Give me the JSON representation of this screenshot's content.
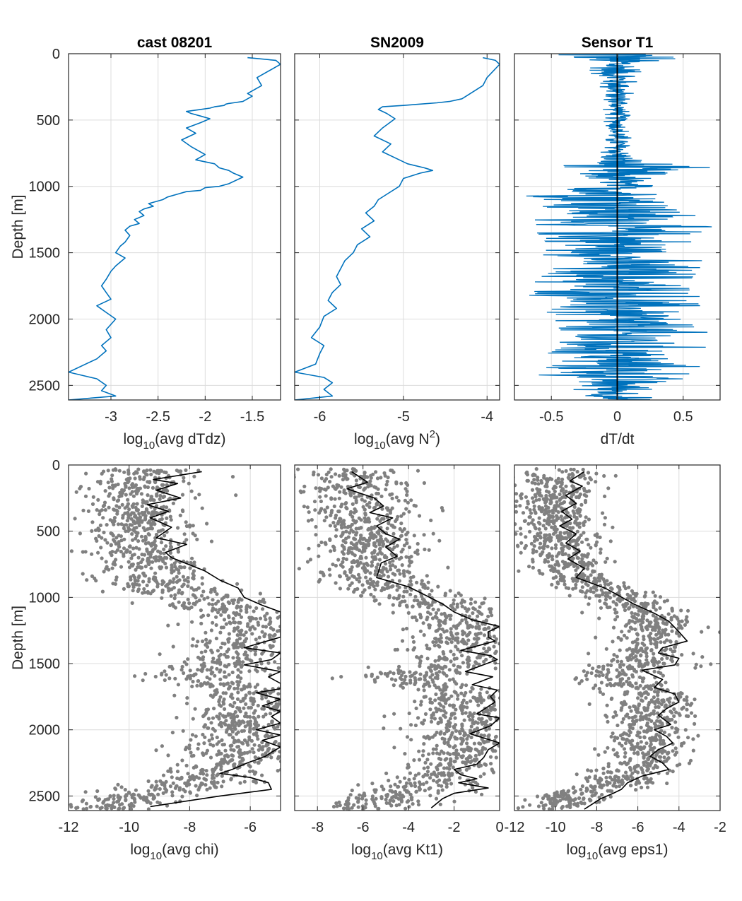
{
  "figure": {
    "colors": {
      "line_blue": "#0072BD",
      "scatter_gray": "#808080",
      "mean_black": "#000000",
      "grid": "#dcdcdc",
      "axes": "#262626"
    }
  },
  "chart_data": [
    {
      "id": "p1",
      "type": "line",
      "title": "cast 08201",
      "xlabel": {
        "pre": "log",
        "sub": "10",
        "post": "(avg dTdz)"
      },
      "ylabel": "Depth [m]",
      "xlim": [
        -3.45,
        -1.2
      ],
      "ylim": [
        0,
        2610
      ],
      "y_reversed": true,
      "grid": true,
      "xticks": [
        -3,
        -2.5,
        -2,
        -1.5
      ],
      "xtick_labels": [
        "-3",
        "-2.5",
        "-2",
        "-1.5"
      ],
      "yticks": [
        0,
        500,
        1000,
        1500,
        2000,
        2500
      ],
      "ytick_labels": [
        "0",
        "500",
        "1000",
        "1500",
        "2000",
        "2500"
      ],
      "series": [
        {
          "color": "#0072BD",
          "x": [
            -1.55,
            -1.25,
            -1.2,
            -1.45,
            -1.4,
            -1.55,
            -1.5,
            -1.6,
            -1.7,
            -1.75,
            -1.78,
            -1.8,
            -1.85,
            -1.9,
            -1.95,
            -2.05,
            -2.2,
            -2.15,
            -2.05,
            -1.95,
            -2.05,
            -2.2,
            -2.1,
            -2.25,
            -2.15,
            -2.0,
            -2.1,
            -1.9,
            -1.85,
            -1.75,
            -1.7,
            -1.6,
            -1.75,
            -1.85,
            -2.0,
            -2.05,
            -2.2,
            -2.3,
            -2.4,
            -2.45,
            -2.5,
            -2.6,
            -2.55,
            -2.65,
            -2.7,
            -2.65,
            -2.75,
            -2.7,
            -2.8,
            -2.85,
            -2.8,
            -2.85,
            -2.9,
            -2.95,
            -2.85,
            -2.95,
            -3.0,
            -3.05,
            -3.1,
            -3.05,
            -3.0,
            -3.15,
            -3.05,
            -2.95,
            -3.05,
            -3.0,
            -3.1,
            -3.05,
            -3.15,
            -3.45,
            -3.15,
            -3.05,
            -3.1,
            -2.95,
            -3.45
          ],
          "y": [
            30,
            50,
            80,
            180,
            240,
            300,
            320,
            360,
            370,
            375,
            380,
            390,
            395,
            400,
            410,
            420,
            435,
            450,
            470,
            490,
            520,
            560,
            600,
            650,
            700,
            760,
            800,
            830,
            860,
            880,
            900,
            930,
            980,
            1000,
            1010,
            1030,
            1040,
            1060,
            1080,
            1100,
            1110,
            1130,
            1150,
            1170,
            1190,
            1220,
            1250,
            1280,
            1300,
            1330,
            1370,
            1420,
            1450,
            1500,
            1540,
            1600,
            1640,
            1700,
            1750,
            1800,
            1850,
            1900,
            1950,
            2000,
            2080,
            2140,
            2200,
            2240,
            2300,
            2400,
            2450,
            2500,
            2540,
            2580,
            2610
          ]
        }
      ]
    },
    {
      "id": "p2",
      "type": "line",
      "title": "SN2009",
      "xlabel": {
        "pre": "log",
        "sub": "10",
        "post": "(avg N",
        "sup": "2",
        "post2": ")"
      },
      "xlim": [
        -6.3,
        -3.85
      ],
      "ylim": [
        0,
        2610
      ],
      "y_reversed": true,
      "grid": true,
      "xticks": [
        -6,
        -5,
        -4
      ],
      "xtick_labels": [
        "-6",
        "-5",
        "-4"
      ],
      "yticks": [
        0,
        500,
        1000,
        1500,
        2000,
        2500
      ],
      "series": [
        {
          "color": "#0072BD",
          "x": [
            -4.05,
            -3.9,
            -3.85,
            -4.0,
            -4.05,
            -4.2,
            -4.3,
            -4.45,
            -4.6,
            -4.8,
            -5.0,
            -5.25,
            -5.3,
            -5.2,
            -5.1,
            -5.25,
            -5.35,
            -5.15,
            -5.25,
            -5.05,
            -4.95,
            -4.75,
            -4.7,
            -4.65,
            -4.8,
            -5.0,
            -5.05,
            -5.2,
            -5.3,
            -5.35,
            -5.45,
            -5.35,
            -5.5,
            -5.4,
            -5.55,
            -5.6,
            -5.7,
            -5.75,
            -5.8,
            -5.75,
            -5.85,
            -5.9,
            -5.8,
            -5.95,
            -6.0,
            -6.1,
            -5.95,
            -6.0,
            -6.05,
            -6.3,
            -5.95,
            -5.85,
            -5.95,
            -5.85,
            -6.3
          ],
          "y": [
            30,
            50,
            80,
            180,
            240,
            300,
            340,
            360,
            370,
            380,
            390,
            400,
            420,
            450,
            490,
            560,
            620,
            680,
            740,
            800,
            830,
            860,
            870,
            880,
            900,
            940,
            1000,
            1060,
            1100,
            1150,
            1200,
            1260,
            1320,
            1380,
            1440,
            1500,
            1560,
            1620,
            1680,
            1740,
            1800,
            1860,
            1920,
            1980,
            2060,
            2140,
            2200,
            2260,
            2340,
            2400,
            2440,
            2480,
            2530,
            2580,
            2610
          ]
        }
      ]
    },
    {
      "id": "p3",
      "type": "line",
      "title": "Sensor T1",
      "xlabel": {
        "pre": "dT/dt"
      },
      "xlim": [
        -0.78,
        0.78
      ],
      "ylim": [
        0,
        2610
      ],
      "y_reversed": true,
      "grid": true,
      "xticks": [
        -0.5,
        0,
        0.5
      ],
      "xtick_labels": [
        "-0.5",
        "0",
        "0.5"
      ],
      "yticks": [
        0,
        500,
        1000,
        1500,
        2000,
        2500
      ],
      "signal_envelope": {
        "depth": [
          0,
          50,
          100,
          200,
          300,
          400,
          500,
          600,
          700,
          800,
          850,
          900,
          950,
          1000,
          1050,
          1100,
          1200,
          1300,
          1400,
          1500,
          1600,
          1700,
          1800,
          1900,
          2000,
          2100,
          2200,
          2300,
          2400,
          2500,
          2610
        ],
        "amplitude": [
          0.78,
          0.5,
          0.3,
          0.2,
          0.15,
          0.12,
          0.12,
          0.12,
          0.15,
          0.2,
          0.78,
          0.5,
          0.3,
          0.35,
          0.78,
          0.78,
          0.78,
          0.78,
          0.78,
          0.6,
          0.78,
          0.78,
          0.78,
          0.78,
          0.78,
          0.78,
          0.78,
          0.6,
          0.78,
          0.4,
          0.3
        ]
      },
      "zero_line": 0
    },
    {
      "id": "p4",
      "type": "scatter",
      "xlabel": {
        "pre": "log",
        "sub": "10",
        "post": "(avg chi)"
      },
      "ylabel": "Depth [m]",
      "xlim": [
        -12,
        -5
      ],
      "ylim": [
        0,
        2610
      ],
      "y_reversed": true,
      "grid": true,
      "xticks": [
        -12,
        -10,
        -8,
        -6
      ],
      "xtick_labels": [
        "-12",
        "-10",
        "-8",
        "-6"
      ],
      "yticks": [
        0,
        500,
        1000,
        1500,
        2000,
        2500
      ],
      "ytick_labels": [
        "0",
        "500",
        "1000",
        "1500",
        "2000",
        "2500"
      ],
      "scatter_center": {
        "depth": [
          50,
          200,
          400,
          600,
          800,
          900,
          1000,
          1100,
          1200,
          1300,
          1400,
          1500,
          1600,
          1700,
          1800,
          1900,
          2000,
          2100,
          2200,
          2300,
          2400,
          2500,
          2580
        ],
        "x": [
          -9.5,
          -9.5,
          -9.8,
          -9.6,
          -9.3,
          -9.0,
          -7.5,
          -6.5,
          -6.2,
          -6.0,
          -6.5,
          -6.3,
          -8.0,
          -6.2,
          -6.0,
          -6.3,
          -6.2,
          -6.3,
          -6.5,
          -7.0,
          -7.8,
          -10.0,
          -10.5
        ]
      },
      "scatter_spread": 0.9,
      "mean_line": {
        "x": [
          -7.6,
          -9.2,
          -8.4,
          -9.1,
          -8.3,
          -9.4,
          -8.7,
          -9.3,
          -8.6,
          -9.1,
          -8.1,
          -8.8,
          -8.6,
          -7.5,
          -7.0,
          -6.4,
          -6.2,
          -5.6,
          -5.0,
          -5.0,
          -5.0,
          -5.0,
          -6.2,
          -5.0,
          -5.3,
          -6.2,
          -5.0,
          -5.4,
          -5.0,
          -5.0,
          -5.8,
          -5.0,
          -5.6,
          -5.0,
          -5.3,
          -5.0,
          -5.8,
          -5.0,
          -5.6,
          -5.0,
          -5.3,
          -5.5,
          -6.1,
          -6.6,
          -7.0,
          -6.0,
          -5.4,
          -5.3,
          -7.0,
          -9.3
        ],
        "y": [
          50,
          110,
          140,
          190,
          250,
          300,
          350,
          400,
          470,
          550,
          600,
          660,
          700,
          800,
          870,
          930,
          1000,
          1060,
          1110,
          1200,
          1240,
          1300,
          1380,
          1420,
          1470,
          1510,
          1560,
          1600,
          1650,
          1690,
          1720,
          1770,
          1820,
          1860,
          1900,
          1950,
          2000,
          2040,
          2080,
          2130,
          2170,
          2200,
          2250,
          2300,
          2330,
          2360,
          2400,
          2450,
          2500,
          2580
        ]
      }
    },
    {
      "id": "p5",
      "type": "scatter",
      "xlabel": {
        "pre": "log",
        "sub": "10",
        "post": "(avg Kt1)"
      },
      "xlim": [
        -9,
        0
      ],
      "ylim": [
        0,
        2610
      ],
      "y_reversed": true,
      "grid": true,
      "xticks": [
        -8,
        -6,
        -4,
        -2,
        0
      ],
      "xtick_labels": [
        "-8",
        "-6",
        "-4",
        "-2",
        "0"
      ],
      "yticks": [
        0,
        500,
        1000,
        1500,
        2000,
        2500
      ],
      "scatter_center": {
        "depth": [
          50,
          200,
          400,
          600,
          800,
          900,
          1000,
          1100,
          1200,
          1300,
          1400,
          1500,
          1600,
          1700,
          1800,
          1900,
          2000,
          2100,
          2200,
          2300,
          2400,
          2500,
          2580
        ],
        "x": [
          -6.5,
          -6.2,
          -5.9,
          -5.7,
          -5.5,
          -5.2,
          -3.5,
          -2.0,
          -1.5,
          -1.2,
          -2.0,
          -1.8,
          -4.5,
          -1.5,
          -1.3,
          -1.5,
          -1.4,
          -1.5,
          -1.7,
          -2.0,
          -2.8,
          -5.0,
          -5.5
        ]
      },
      "scatter_spread": 1.2,
      "mean_line": {
        "x": [
          -6.5,
          -5.8,
          -6.7,
          -5.5,
          -5.1,
          -5.7,
          -4.7,
          -5.4,
          -5.0,
          -4.4,
          -5.0,
          -4.5,
          -5.2,
          -5.4,
          -4.0,
          -3.3,
          -2.5,
          -2.0,
          -1.2,
          0.0,
          -0.5,
          -0.5,
          -0.2,
          -1.7,
          -0.4,
          -0.1,
          -1.5,
          -0.3,
          -1.2,
          -0.1,
          -0.4,
          -0.2,
          -1.0,
          0.0,
          -0.4,
          -1.3,
          0.0,
          -0.5,
          -0.7,
          -1.0,
          -2.0,
          -1.7,
          -1.0,
          -1.8,
          -0.5,
          -2.0,
          -2.5,
          -3.0
        ],
        "y": [
          50,
          130,
          180,
          250,
          310,
          360,
          400,
          460,
          520,
          560,
          620,
          690,
          740,
          850,
          920,
          980,
          1050,
          1110,
          1170,
          1220,
          1260,
          1300,
          1330,
          1400,
          1440,
          1470,
          1560,
          1600,
          1660,
          1700,
          1750,
          1790,
          1880,
          1910,
          1970,
          2030,
          2100,
          2150,
          2210,
          2260,
          2300,
          2340,
          2370,
          2400,
          2440,
          2480,
          2520,
          2590
        ]
      }
    },
    {
      "id": "p6",
      "type": "scatter",
      "xlabel": {
        "pre": "log",
        "sub": "10",
        "post": "(avg eps1)"
      },
      "xlim": [
        -12,
        -2
      ],
      "ylim": [
        0,
        2610
      ],
      "y_reversed": true,
      "grid": true,
      "xticks": [
        -12,
        -10,
        -8,
        -6,
        -4,
        -2
      ],
      "xtick_labels": [
        "-12",
        "-10",
        "-8",
        "-6",
        "-4",
        "-2"
      ],
      "yticks": [
        0,
        500,
        1000,
        1500,
        2000,
        2500
      ],
      "scatter_center": {
        "depth": [
          50,
          200,
          400,
          600,
          800,
          900,
          1000,
          1100,
          1200,
          1300,
          1400,
          1500,
          1600,
          1700,
          1800,
          1900,
          2000,
          2100,
          2200,
          2300,
          2400,
          2500,
          2580
        ],
        "x": [
          -9.8,
          -9.8,
          -10.0,
          -9.7,
          -9.4,
          -8.6,
          -7.0,
          -5.8,
          -5.2,
          -5.2,
          -5.8,
          -5.5,
          -7.8,
          -5.5,
          -5.0,
          -5.5,
          -5.5,
          -5.6,
          -5.8,
          -6.3,
          -7.0,
          -9.5,
          -10.0
        ]
      },
      "scatter_spread": 1.0,
      "mean_line": {
        "x": [
          -8.6,
          -9.3,
          -8.7,
          -9.5,
          -9.0,
          -9.7,
          -9.2,
          -9.8,
          -9.0,
          -9.5,
          -8.8,
          -9.4,
          -8.6,
          -9.0,
          -7.6,
          -7.0,
          -6.2,
          -5.2,
          -4.5,
          -4.0,
          -3.6,
          -4.8,
          -5.0,
          -4.0,
          -4.2,
          -5.8,
          -4.8,
          -5.2,
          -4.2,
          -4.0,
          -4.6,
          -5.0,
          -4.4,
          -5.2,
          -4.6,
          -4.3,
          -5.0,
          -5.4,
          -4.8,
          -4.5,
          -5.8,
          -6.5,
          -6.8,
          -7.2,
          -7.8,
          -8.2,
          -8.6
        ],
        "y": [
          50,
          120,
          160,
          230,
          290,
          350,
          410,
          460,
          520,
          590,
          650,
          710,
          780,
          850,
          930,
          980,
          1050,
          1120,
          1180,
          1260,
          1330,
          1380,
          1420,
          1460,
          1510,
          1550,
          1620,
          1680,
          1730,
          1790,
          1840,
          1890,
          1960,
          2000,
          2050,
          2100,
          2150,
          2200,
          2250,
          2300,
          2350,
          2400,
          2450,
          2480,
          2520,
          2560,
          2600
        ]
      }
    }
  ]
}
